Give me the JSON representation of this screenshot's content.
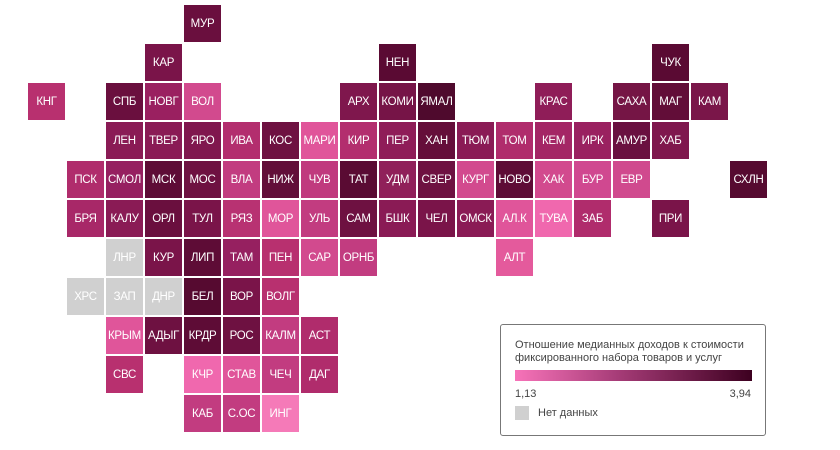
{
  "legend": {
    "title": "Отношение медианных доходов к стоимости фиксированного набора товаров и услуг",
    "min_label": "1,13",
    "max_label": "3,94",
    "no_data_label": "Нет данных",
    "gradient_start": "#f773b9",
    "gradient_end": "#3d0020",
    "no_data_color": "#d0d0d0"
  },
  "regions": [
    {
      "label": "МУР",
      "col": 4,
      "row": 0,
      "color": "#6a0f3e"
    },
    {
      "label": "КАР",
      "col": 3,
      "row": 1,
      "color": "#7a1449"
    },
    {
      "label": "НЕН",
      "col": 9,
      "row": 1,
      "color": "#5a0a33"
    },
    {
      "label": "ЧУК",
      "col": 16,
      "row": 1,
      "color": "#5a0a33"
    },
    {
      "label": "КНГ",
      "col": 0,
      "row": 2,
      "color": "#b8306f"
    },
    {
      "label": "СПБ",
      "col": 2,
      "row": 2,
      "color": "#6a0f3e"
    },
    {
      "label": "НОВГ",
      "col": 3,
      "row": 2,
      "color": "#9a2060"
    },
    {
      "label": "ВОЛ",
      "col": 4,
      "row": 2,
      "color": "#d24a8e"
    },
    {
      "label": "АРХ",
      "col": 8,
      "row": 2,
      "color": "#7f174d"
    },
    {
      "label": "КОМИ",
      "col": 9,
      "row": 2,
      "color": "#761447"
    },
    {
      "label": "ЯМАЛ",
      "col": 10,
      "row": 2,
      "color": "#4f0a2d"
    },
    {
      "label": "КРАС",
      "col": 13,
      "row": 2,
      "color": "#8f1d58"
    },
    {
      "label": "САХА",
      "col": 15,
      "row": 2,
      "color": "#751545"
    },
    {
      "label": "МАГ",
      "col": 16,
      "row": 2,
      "color": "#620d38"
    },
    {
      "label": "КАМ",
      "col": 17,
      "row": 2,
      "color": "#7a1649"
    },
    {
      "label": "ЛЕН",
      "col": 2,
      "row": 3,
      "color": "#8a1b55"
    },
    {
      "label": "ТВЕР",
      "col": 3,
      "row": 3,
      "color": "#8a1b55"
    },
    {
      "label": "ЯРО",
      "col": 4,
      "row": 3,
      "color": "#80174e"
    },
    {
      "label": "ИВА",
      "col": 5,
      "row": 3,
      "color": "#b32e6e"
    },
    {
      "label": "КОС",
      "col": 6,
      "row": 3,
      "color": "#6e1141"
    },
    {
      "label": "МАРИ",
      "col": 7,
      "row": 3,
      "color": "#e0559a"
    },
    {
      "label": "КИР",
      "col": 8,
      "row": 3,
      "color": "#b32e6e"
    },
    {
      "label": "ПЕР",
      "col": 9,
      "row": 3,
      "color": "#8f1d58"
    },
    {
      "label": "ХАН",
      "col": 10,
      "row": 3,
      "color": "#650e3a"
    },
    {
      "label": "ТЮМ",
      "col": 11,
      "row": 3,
      "color": "#8a1b55"
    },
    {
      "label": "ТОМ",
      "col": 12,
      "row": 3,
      "color": "#b02c6c"
    },
    {
      "label": "КЕМ",
      "col": 13,
      "row": 3,
      "color": "#a42665"
    },
    {
      "label": "ИРК",
      "col": 14,
      "row": 3,
      "color": "#9a2160"
    },
    {
      "label": "АМУР",
      "col": 15,
      "row": 3,
      "color": "#6a1040"
    },
    {
      "label": "ХАБ",
      "col": 16,
      "row": 3,
      "color": "#7f174d"
    },
    {
      "label": "ПСК",
      "col": 1,
      "row": 4,
      "color": "#b02c6c"
    },
    {
      "label": "СМОЛ",
      "col": 2,
      "row": 4,
      "color": "#962060"
    },
    {
      "label": "МСК",
      "col": 3,
      "row": 4,
      "color": "#5e0c36"
    },
    {
      "label": "МОС",
      "col": 4,
      "row": 4,
      "color": "#6e1141"
    },
    {
      "label": "ВЛА",
      "col": 5,
      "row": 4,
      "color": "#c23c80"
    },
    {
      "label": "НИЖ",
      "col": 6,
      "row": 4,
      "color": "#620e39"
    },
    {
      "label": "ЧУВ",
      "col": 7,
      "row": 4,
      "color": "#c03a7e"
    },
    {
      "label": "ТАТ",
      "col": 8,
      "row": 4,
      "color": "#5a0b33"
    },
    {
      "label": "УДМ",
      "col": 9,
      "row": 4,
      "color": "#90205a"
    },
    {
      "label": "СВЕР",
      "col": 10,
      "row": 4,
      "color": "#6e1141"
    },
    {
      "label": "КУРГ",
      "col": 11,
      "row": 4,
      "color": "#d24a8e"
    },
    {
      "label": "НОВО",
      "col": 12,
      "row": 4,
      "color": "#5e0c36"
    },
    {
      "label": "ХАК",
      "col": 13,
      "row": 4,
      "color": "#d24a8e"
    },
    {
      "label": "БУР",
      "col": 14,
      "row": 4,
      "color": "#d04890"
    },
    {
      "label": "ЕВР",
      "col": 15,
      "row": 4,
      "color": "#d04a8e"
    },
    {
      "label": "СХЛН",
      "col": 18,
      "row": 4,
      "color": "#560a30"
    },
    {
      "label": "БРЯ",
      "col": 1,
      "row": 5,
      "color": "#a82868"
    },
    {
      "label": "КАЛУ",
      "col": 2,
      "row": 5,
      "color": "#8a1b55"
    },
    {
      "label": "ОРЛ",
      "col": 3,
      "row": 5,
      "color": "#6a0f3e"
    },
    {
      "label": "ТУЛ",
      "col": 4,
      "row": 5,
      "color": "#7a1449"
    },
    {
      "label": "РЯЗ",
      "col": 5,
      "row": 5,
      "color": "#b83272"
    },
    {
      "label": "МОР",
      "col": 6,
      "row": 5,
      "color": "#e0559a"
    },
    {
      "label": "УЛЬ",
      "col": 7,
      "row": 5,
      "color": "#c23c80"
    },
    {
      "label": "САМ",
      "col": 8,
      "row": 5,
      "color": "#6e1141"
    },
    {
      "label": "БШК",
      "col": 9,
      "row": 5,
      "color": "#8a1b55"
    },
    {
      "label": "ЧЕЛ",
      "col": 10,
      "row": 5,
      "color": "#7a1449"
    },
    {
      "label": "ОМСК",
      "col": 11,
      "row": 5,
      "color": "#8a1b55"
    },
    {
      "label": "АЛ.К",
      "col": 12,
      "row": 5,
      "color": "#e0559a"
    },
    {
      "label": "ТУВА",
      "col": 13,
      "row": 5,
      "color": "#f068ae"
    },
    {
      "label": "ЗАБ",
      "col": 14,
      "row": 5,
      "color": "#b02c6c"
    },
    {
      "label": "ПРИ",
      "col": 16,
      "row": 5,
      "color": "#7a1449"
    },
    {
      "label": "ЛНР",
      "col": 2,
      "row": 6,
      "color": "#d0d0d0"
    },
    {
      "label": "КУР",
      "col": 3,
      "row": 6,
      "color": "#7a1449"
    },
    {
      "label": "ЛИП",
      "col": 4,
      "row": 6,
      "color": "#5e0c36"
    },
    {
      "label": "ТАМ",
      "col": 5,
      "row": 6,
      "color": "#962060"
    },
    {
      "label": "ПЕН",
      "col": 6,
      "row": 6,
      "color": "#b8306f"
    },
    {
      "label": "САР",
      "col": 7,
      "row": 6,
      "color": "#d24a8e"
    },
    {
      "label": "ОРНБ",
      "col": 8,
      "row": 6,
      "color": "#c23c80"
    },
    {
      "label": "АЛТ",
      "col": 12,
      "row": 6,
      "color": "#e45a9c"
    },
    {
      "label": "ХРС",
      "col": 1,
      "row": 7,
      "color": "#d0d0d0"
    },
    {
      "label": "ЗАП",
      "col": 2,
      "row": 7,
      "color": "#d0d0d0"
    },
    {
      "label": "ДНР",
      "col": 3,
      "row": 7,
      "color": "#d0d0d0"
    },
    {
      "label": "БЕЛ",
      "col": 4,
      "row": 7,
      "color": "#560a30"
    },
    {
      "label": "ВОР",
      "col": 5,
      "row": 7,
      "color": "#7a1449"
    },
    {
      "label": "ВОЛГ",
      "col": 6,
      "row": 7,
      "color": "#b8306f"
    },
    {
      "label": "КРЫМ",
      "col": 2,
      "row": 8,
      "color": "#e0559a"
    },
    {
      "label": "АДЫГ",
      "col": 3,
      "row": 8,
      "color": "#6e1141"
    },
    {
      "label": "КРДР",
      "col": 4,
      "row": 8,
      "color": "#5e0c36"
    },
    {
      "label": "РОС",
      "col": 5,
      "row": 8,
      "color": "#6e1141"
    },
    {
      "label": "КАЛМ",
      "col": 6,
      "row": 8,
      "color": "#c23c80"
    },
    {
      "label": "АСТ",
      "col": 7,
      "row": 8,
      "color": "#b02c6c"
    },
    {
      "label": "СВС",
      "col": 2,
      "row": 9,
      "color": "#b8306f"
    },
    {
      "label": "КЧР",
      "col": 4,
      "row": 9,
      "color": "#f068ae"
    },
    {
      "label": "СТАВ",
      "col": 5,
      "row": 9,
      "color": "#e0559a"
    },
    {
      "label": "ЧЕЧ",
      "col": 6,
      "row": 9,
      "color": "#c23c80"
    },
    {
      "label": "ДАГ",
      "col": 7,
      "row": 9,
      "color": "#b02c6c"
    },
    {
      "label": "КАБ",
      "col": 4,
      "row": 10,
      "color": "#c23c80"
    },
    {
      "label": "С.ОС",
      "col": 5,
      "row": 10,
      "color": "#c23c80"
    },
    {
      "label": "ИНГ",
      "col": 6,
      "row": 10,
      "color": "#f57ab8"
    }
  ]
}
